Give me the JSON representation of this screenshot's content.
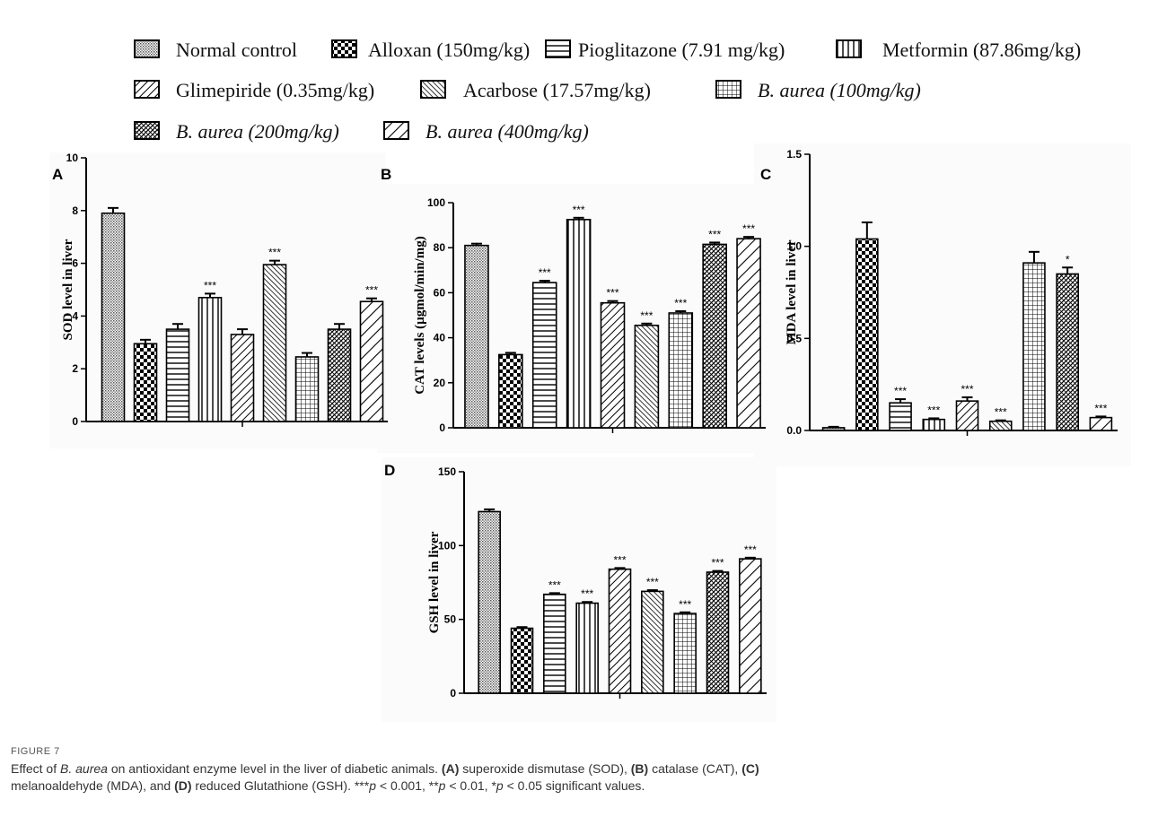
{
  "colors": {
    "bar_fill": "#ffffff",
    "bar_stroke": "#000000",
    "panel_background": "#fbfbfb"
  },
  "legend": {
    "items": [
      {
        "text": "Normal control",
        "italic": "",
        "pattern": "fine-crosshatch"
      },
      {
        "text": "Alloxan (150mg/kg)",
        "italic": "",
        "pattern": "checker"
      },
      {
        "text": "Pioglitazone (7.91 mg/kg)",
        "italic": "",
        "pattern": "horizontal-lines"
      },
      {
        "text": "Metformin (87.86mg/kg)",
        "italic": "",
        "pattern": "vertical-lines"
      },
      {
        "text": "Glimepiride (0.35mg/kg)",
        "italic": "",
        "pattern": "forward-diagonal"
      },
      {
        "text": "Acarbose (17.57mg/kg)",
        "italic": "",
        "pattern": "backward-diagonal"
      },
      {
        "text": "",
        "italic": "B. aurea (100mg/kg)",
        "pattern": "grid"
      },
      {
        "text": "",
        "italic": "B. aurea (200mg/kg)",
        "pattern": "diamond"
      },
      {
        "text": "",
        "italic": "B. aurea (400mg/kg)",
        "pattern": "wide-backward-diagonal"
      }
    ]
  },
  "chart_data": [
    {
      "panel": "A",
      "type": "bar",
      "categories": [
        "Normal control",
        "Alloxan (150mg/kg)",
        "Pioglitazone (7.91 mg/kg)",
        "Metformin (87.86mg/kg)",
        "Glimepiride (0.35mg/kg)",
        "Acarbose (17.57mg/kg)",
        "B. aurea (100mg/kg)",
        "B. aurea (200mg/kg)",
        "B. aurea (400mg/kg)"
      ],
      "values": [
        7.9,
        2.95,
        3.5,
        4.7,
        3.3,
        5.95,
        2.45,
        3.5,
        4.55
      ],
      "errors": [
        0.2,
        0.15,
        0.2,
        0.15,
        0.2,
        0.15,
        0.15,
        0.2,
        0.12
      ],
      "significance": [
        "",
        "",
        "",
        "***",
        "",
        "***",
        "",
        "",
        "***"
      ],
      "ylabel": "SOD level in liver",
      "ylim": [
        0,
        10
      ],
      "yticks": [
        0,
        2,
        4,
        6,
        8,
        10
      ],
      "tick_labels": [
        "0",
        "2",
        "4",
        "6",
        "8",
        "10"
      ]
    },
    {
      "panel": "B",
      "type": "bar",
      "categories": [
        "Normal control",
        "Alloxan (150mg/kg)",
        "Pioglitazone (7.91 mg/kg)",
        "Metformin (87.86mg/kg)",
        "Glimepiride (0.35mg/kg)",
        "Acarbose (17.57mg/kg)",
        "B. aurea (100mg/kg)",
        "B. aurea (200mg/kg)",
        "B. aurea (400mg/kg)"
      ],
      "values": [
        81,
        32.5,
        64.5,
        92.5,
        55.5,
        45.5,
        51,
        81.5,
        84
      ],
      "errors": [
        0.8,
        0.8,
        0.8,
        0.8,
        0.8,
        0.8,
        0.8,
        0.8,
        0.8
      ],
      "significance": [
        "",
        "",
        "***",
        "***",
        "***",
        "***",
        "***",
        "***",
        "***"
      ],
      "ylabel": "CAT levels (µgmol/min/mg)",
      "ylim": [
        0,
        100
      ],
      "yticks": [
        0,
        20,
        40,
        60,
        80,
        100
      ],
      "tick_labels": [
        "0",
        "20",
        "40",
        "60",
        "80",
        "100"
      ]
    },
    {
      "panel": "C",
      "type": "bar",
      "categories": [
        "Normal control",
        "Alloxan (150mg/kg)",
        "Pioglitazone (7.91 mg/kg)",
        "Metformin (87.86mg/kg)",
        "Glimepiride (0.35mg/kg)",
        "Acarbose (17.57mg/kg)",
        "B. aurea (100mg/kg)",
        "B. aurea (200mg/kg)",
        "B. aurea (400mg/kg)"
      ],
      "values": [
        0.015,
        1.04,
        0.15,
        0.06,
        0.16,
        0.05,
        0.91,
        0.85,
        0.07
      ],
      "errors": [
        0.005,
        0.09,
        0.02,
        0.006,
        0.02,
        0.005,
        0.06,
        0.035,
        0.006
      ],
      "significance": [
        "",
        "",
        "***",
        "***",
        "***",
        "***",
        "",
        "*",
        "***"
      ],
      "ylabel": "MDA level in liver",
      "ylim": [
        0,
        1.5
      ],
      "yticks": [
        0,
        0.5,
        1.0,
        1.5
      ],
      "tick_labels": [
        "0.0",
        "0.5",
        "1.0",
        "1.5"
      ]
    },
    {
      "panel": "D",
      "type": "bar",
      "categories": [
        "Normal control",
        "Alloxan (150mg/kg)",
        "Pioglitazone (7.91 mg/kg)",
        "Metformin (87.86mg/kg)",
        "Glimepiride (0.35mg/kg)",
        "Acarbose (17.57mg/kg)",
        "B. aurea (100mg/kg)",
        "B. aurea (200mg/kg)",
        "B. aurea (400mg/kg)"
      ],
      "values": [
        123,
        44,
        67,
        61,
        84,
        69,
        54,
        82,
        91
      ],
      "errors": [
        1.5,
        0.8,
        0.8,
        0.8,
        0.8,
        0.8,
        0.8,
        0.8,
        0.8
      ],
      "significance": [
        "",
        "",
        "***",
        "***",
        "***",
        "***",
        "***",
        "***",
        "***"
      ],
      "ylabel": "GSH level in liver",
      "ylim": [
        0,
        150
      ],
      "yticks": [
        0,
        50,
        100,
        150
      ],
      "tick_labels": [
        "0",
        "50",
        "100",
        "150"
      ]
    }
  ],
  "caption": {
    "figure_number": "FIGURE 7",
    "intro_before": "Effect of ",
    "intro_italic": "B. aurea",
    "intro_after": " on antioxidant enzyme level in the liver of diabetic animals. ",
    "part_a_label": "(A)",
    "part_a_text": " superoxide dismutase (SOD), ",
    "part_b_label": "(B)",
    "part_b_text": " catalase (CAT), ",
    "part_c_label": "(C)",
    "part_c_text": " melanoaldehyde (MDA), and ",
    "part_d_label": "(D)",
    "part_d_text": " reduced Glutathione (GSH). ***",
    "p1": "p",
    "t1": " < 0.001, **",
    "p2": "p",
    "t2": " < 0.01, *",
    "p3": "p",
    "t3": " < 0.05 significant values."
  }
}
